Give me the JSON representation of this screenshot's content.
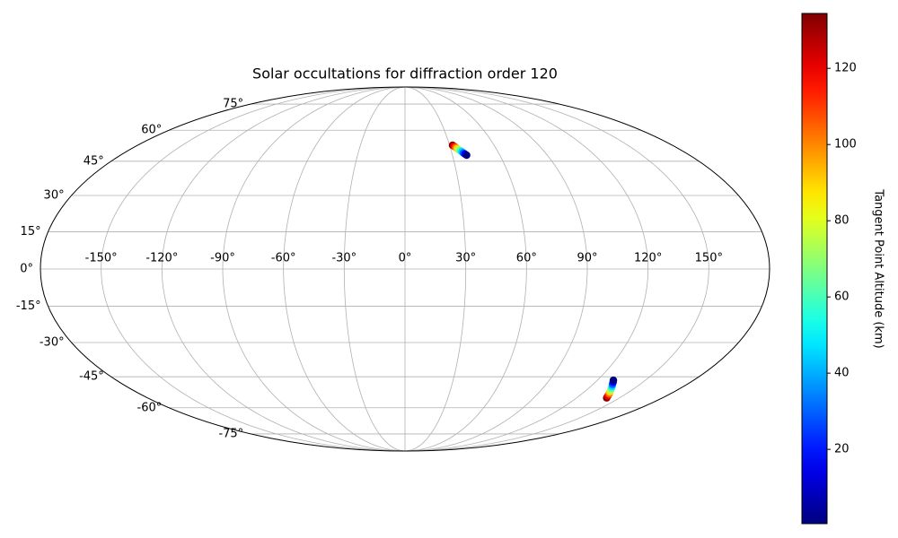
{
  "chart_data": {
    "type": "scatter",
    "projection": "mollweide",
    "title": "Solar occultations for diffraction order 120",
    "xlim": [
      -180,
      180
    ],
    "ylim": [
      -90,
      90
    ],
    "xticks": [
      {
        "value": -150,
        "label": "-150°"
      },
      {
        "value": -120,
        "label": "-120°"
      },
      {
        "value": -90,
        "label": "-90°"
      },
      {
        "value": -60,
        "label": "-60°"
      },
      {
        "value": -30,
        "label": "-30°"
      },
      {
        "value": 0,
        "label": "0°"
      },
      {
        "value": 30,
        "label": "30°"
      },
      {
        "value": 60,
        "label": "60°"
      },
      {
        "value": 90,
        "label": "90°"
      },
      {
        "value": 120,
        "label": "120°"
      },
      {
        "value": 150,
        "label": "150°"
      }
    ],
    "yticks": [
      {
        "value": -75,
        "label": "-75°"
      },
      {
        "value": -60,
        "label": "-60°"
      },
      {
        "value": -45,
        "label": "-45°"
      },
      {
        "value": -30,
        "label": "-30°"
      },
      {
        "value": -15,
        "label": "-15°"
      },
      {
        "value": 0,
        "label": "0°"
      },
      {
        "value": 15,
        "label": "15°"
      },
      {
        "value": 30,
        "label": "30°"
      },
      {
        "value": 45,
        "label": "45°"
      },
      {
        "value": 60,
        "label": "60°"
      },
      {
        "value": 75,
        "label": "75°"
      }
    ],
    "grid": true,
    "x": [
      32,
      32.8,
      33.6,
      34.3,
      35.1,
      35.9,
      36.7,
      37.4,
      38.2,
      39,
      141,
      139.8,
      138.6,
      137.3,
      136.1,
      134.9,
      133.7,
      132.4,
      131.2,
      130
    ],
    "y": [
      52.5,
      52,
      51.5,
      50.9,
      50.4,
      49.9,
      49.4,
      48.8,
      48.3,
      47.8,
      -55,
      -54.1,
      -53.1,
      -52.2,
      -51.3,
      -50.3,
      -49.4,
      -48.5,
      -47.5,
      -46.6
    ],
    "c": [
      134,
      120,
      105,
      90,
      75,
      60,
      45,
      30,
      15,
      1,
      134,
      120,
      105,
      90,
      75,
      60,
      45,
      30,
      15,
      1
    ],
    "colormap": "jet",
    "clim": [
      0.5,
      134.4
    ],
    "cticks": [
      20,
      40,
      60,
      80,
      100,
      120
    ],
    "clabel": "Tangent Point Altitude (km)"
  }
}
